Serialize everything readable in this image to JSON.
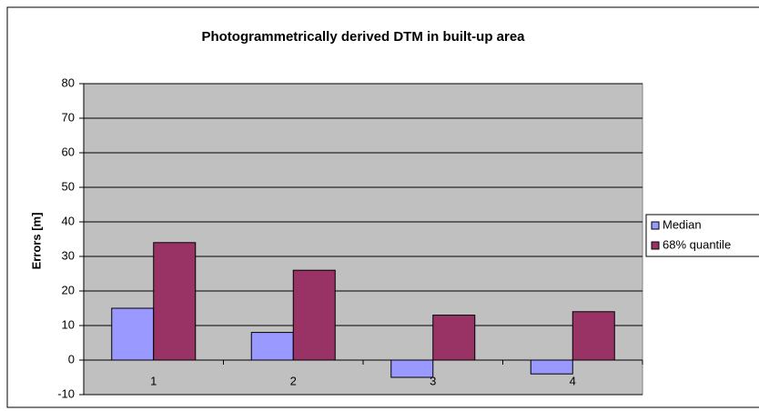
{
  "chart_data": {
    "type": "bar",
    "title": "Photogrammetrically derived DTM in built-up area",
    "y_label": "Errors [m]",
    "categories": [
      "1",
      "2",
      "3",
      "4"
    ],
    "series": [
      {
        "name": "Median",
        "color": "#9999ff",
        "values": [
          15,
          8,
          -5,
          -4
        ]
      },
      {
        "name": "68% quantile",
        "color": "#993366",
        "values": [
          34,
          26,
          13,
          14
        ]
      }
    ],
    "ylim": [
      -10,
      80
    ],
    "yticks": [
      -10,
      0,
      10,
      20,
      30,
      40,
      50,
      60,
      70,
      80
    ],
    "grid": true,
    "legend": "right",
    "plot_background": "#c0c0c0"
  }
}
